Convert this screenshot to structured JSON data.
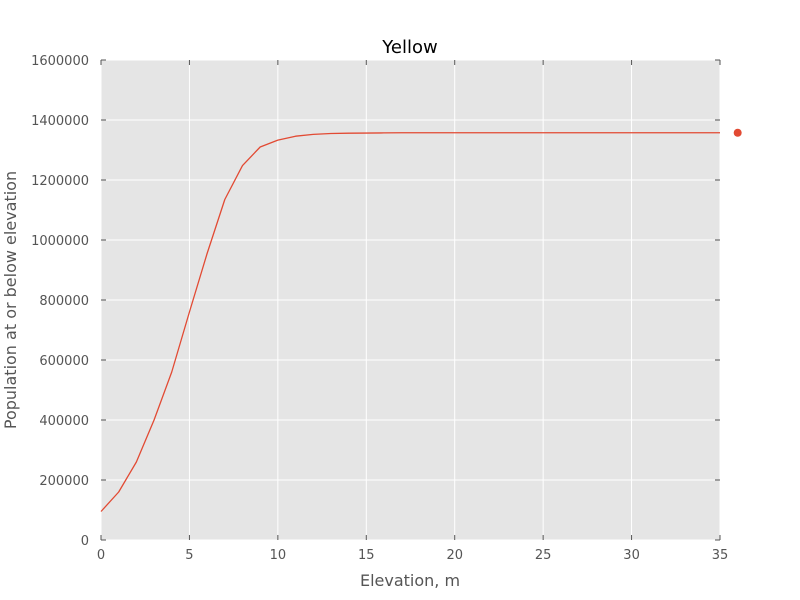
{
  "chart_data": {
    "type": "line",
    "title": "Yellow",
    "xlabel": "Elevation, m",
    "ylabel": "Population at or below elevation",
    "xlim": [
      0,
      35
    ],
    "ylim": [
      0,
      1600000
    ],
    "xticks": [
      0,
      5,
      10,
      15,
      20,
      25,
      30,
      35
    ],
    "yticks": [
      0,
      200000,
      400000,
      600000,
      800000,
      1000000,
      1200000,
      1400000,
      1600000
    ],
    "grid": true,
    "series": [
      {
        "color": "#e24a33",
        "x": [
          0,
          1,
          2,
          3,
          4,
          5,
          6,
          7,
          8,
          9,
          10,
          11,
          12,
          13,
          14,
          15,
          16,
          17,
          18,
          19,
          20,
          21,
          22,
          23,
          24,
          25,
          26,
          27,
          28,
          29,
          30,
          31,
          32,
          33,
          34,
          35
        ],
        "y": [
          95000,
          160000,
          260000,
          400000,
          560000,
          760000,
          955000,
          1135000,
          1248000,
          1310000,
          1333000,
          1346000,
          1352000,
          1355000,
          1356000,
          1356500,
          1357000,
          1357500,
          1357500,
          1357500,
          1357500,
          1357500,
          1357500,
          1357500,
          1357500,
          1357500,
          1357500,
          1357500,
          1357500,
          1357500,
          1357500,
          1357500,
          1357500,
          1357500,
          1357500,
          1357500
        ]
      },
      {
        "color": "#e24a33",
        "marker": "point",
        "x": [
          36
        ],
        "y": [
          1357500
        ]
      }
    ],
    "colors": {
      "plot_background": "#e5e5e5",
      "grid": "#ffffff",
      "tick_label": "#555555"
    }
  }
}
